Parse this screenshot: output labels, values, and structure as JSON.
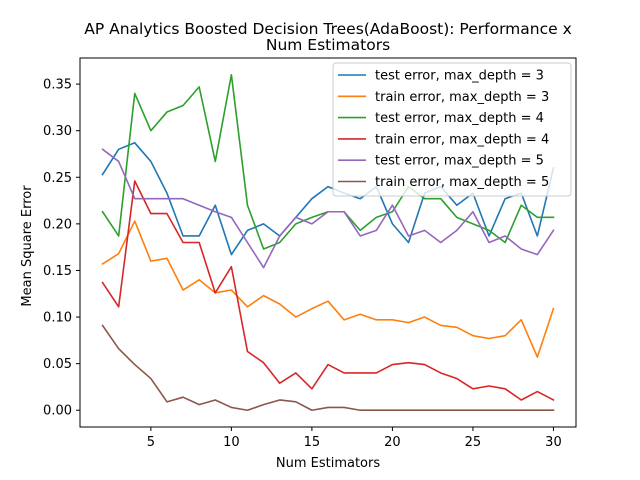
{
  "chart_data": {
    "type": "line",
    "title": "AP Analytics Boosted Decision Trees(AdaBoost): Performance x Num Estimators",
    "title_lines": [
      "AP Analytics Boosted Decision Trees(AdaBoost): Performance x",
      "Num Estimators"
    ],
    "xlabel": "Num Estimators",
    "ylabel": "Mean Square Error",
    "xlim": [
      0.6,
      31.4
    ],
    "ylim": [
      -0.018,
      0.378
    ],
    "xticks": [
      5,
      10,
      15,
      20,
      25,
      30
    ],
    "xtick_labels": [
      "5",
      "10",
      "15",
      "20",
      "25",
      "30"
    ],
    "yticks": [
      0.0,
      0.05,
      0.1,
      0.15,
      0.2,
      0.25,
      0.3,
      0.35
    ],
    "ytick_labels": [
      "0.00",
      "0.05",
      "0.10",
      "0.15",
      "0.20",
      "0.25",
      "0.30",
      "0.35"
    ],
    "grid": false,
    "legend_position": "top-right",
    "x": [
      2,
      3,
      4,
      5,
      6,
      7,
      8,
      9,
      10,
      11,
      12,
      13,
      14,
      15,
      16,
      17,
      18,
      19,
      20,
      21,
      22,
      23,
      24,
      25,
      26,
      27,
      28,
      29,
      30
    ],
    "series": [
      {
        "name": "test error, max_depth = 3",
        "color": "#1f77b4",
        "values": [
          0.253,
          0.28,
          0.287,
          0.267,
          0.233,
          0.187,
          0.187,
          0.22,
          0.167,
          0.193,
          0.2,
          0.187,
          0.207,
          0.227,
          0.24,
          0.233,
          0.227,
          0.24,
          0.2,
          0.18,
          0.233,
          0.24,
          0.22,
          0.233,
          0.187,
          0.227,
          0.233,
          0.187,
          0.26
        ]
      },
      {
        "name": "train error, max_depth = 3",
        "color": "#ff7f0e",
        "values": [
          0.157,
          0.168,
          0.203,
          0.16,
          0.163,
          0.129,
          0.14,
          0.126,
          0.129,
          0.111,
          0.123,
          0.114,
          0.1,
          0.109,
          0.117,
          0.097,
          0.103,
          0.097,
          0.097,
          0.094,
          0.1,
          0.091,
          0.089,
          0.08,
          0.077,
          0.08,
          0.097,
          0.057,
          0.109
        ]
      },
      {
        "name": "test error, max_depth = 4",
        "color": "#2ca02c",
        "values": [
          0.213,
          0.187,
          0.34,
          0.3,
          0.32,
          0.327,
          0.347,
          0.267,
          0.36,
          0.22,
          0.173,
          0.18,
          0.2,
          0.207,
          0.213,
          0.213,
          0.193,
          0.207,
          0.213,
          0.24,
          0.227,
          0.227,
          0.207,
          0.2,
          0.193,
          0.18,
          0.22,
          0.207,
          0.207
        ]
      },
      {
        "name": "train error, max_depth = 4",
        "color": "#d62728",
        "values": [
          0.137,
          0.111,
          0.246,
          0.211,
          0.211,
          0.18,
          0.18,
          0.126,
          0.154,
          0.063,
          0.051,
          0.029,
          0.04,
          0.023,
          0.049,
          0.04,
          0.04,
          0.04,
          0.049,
          0.051,
          0.049,
          0.04,
          0.034,
          0.023,
          0.026,
          0.023,
          0.011,
          0.02,
          0.011
        ]
      },
      {
        "name": "test error, max_depth = 5",
        "color": "#9467bd",
        "values": [
          0.28,
          0.267,
          0.227,
          0.227,
          0.227,
          0.227,
          0.22,
          0.213,
          0.207,
          0.18,
          0.153,
          0.187,
          0.207,
          0.2,
          0.213,
          0.213,
          0.187,
          0.193,
          0.22,
          0.187,
          0.193,
          0.18,
          0.193,
          0.213,
          0.18,
          0.187,
          0.173,
          0.167,
          0.193
        ]
      },
      {
        "name": "train error, max_depth = 5",
        "color": "#8c564b",
        "values": [
          0.091,
          0.066,
          0.049,
          0.034,
          0.009,
          0.014,
          0.006,
          0.011,
          0.003,
          0.0,
          0.006,
          0.011,
          0.009,
          0.0,
          0.003,
          0.003,
          0.0,
          0.0,
          0.0,
          0.0,
          0.0,
          0.0,
          0.0,
          0.0,
          0.0,
          0.0,
          0.0,
          0.0,
          0.0
        ]
      }
    ]
  }
}
